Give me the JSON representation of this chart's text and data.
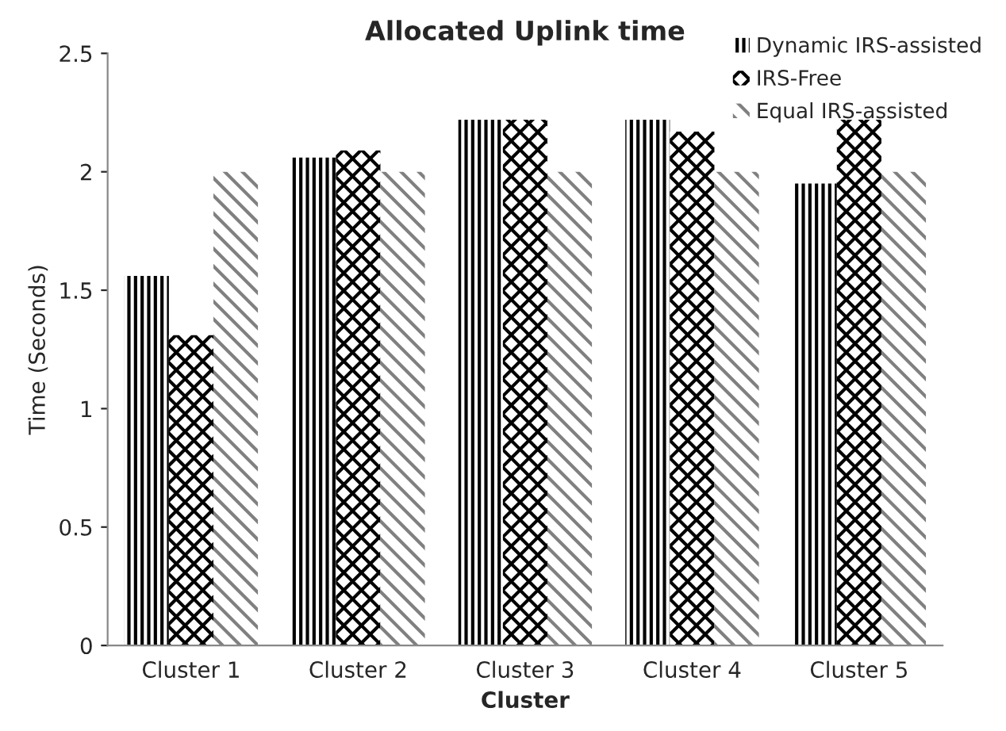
{
  "chart_data": {
    "type": "bar",
    "title": "Allocated Uplink time",
    "xlabel": "Cluster",
    "ylabel": "Time (Seconds)",
    "categories": [
      "Cluster 1",
      "Cluster 2",
      "Cluster 3",
      "Cluster 4",
      "Cluster 5"
    ],
    "series": [
      {
        "name": "Dynamic IRS-assisted",
        "color": "#000000",
        "values": [
          1.56,
          2.06,
          2.22,
          2.22,
          1.95
        ]
      },
      {
        "name": "IRS-Free",
        "color": "#000000",
        "values": [
          1.31,
          2.09,
          2.22,
          2.17,
          2.22
        ]
      },
      {
        "name": "Equal IRS-assisted",
        "color": "#808080",
        "values": [
          2.0,
          2.0,
          2.0,
          2.0,
          2.0
        ]
      }
    ],
    "ylim": [
      0,
      2.5
    ],
    "yticks": [
      0,
      0.5,
      1,
      1.5,
      2,
      2.5
    ],
    "grid": false,
    "legend": "top right"
  }
}
